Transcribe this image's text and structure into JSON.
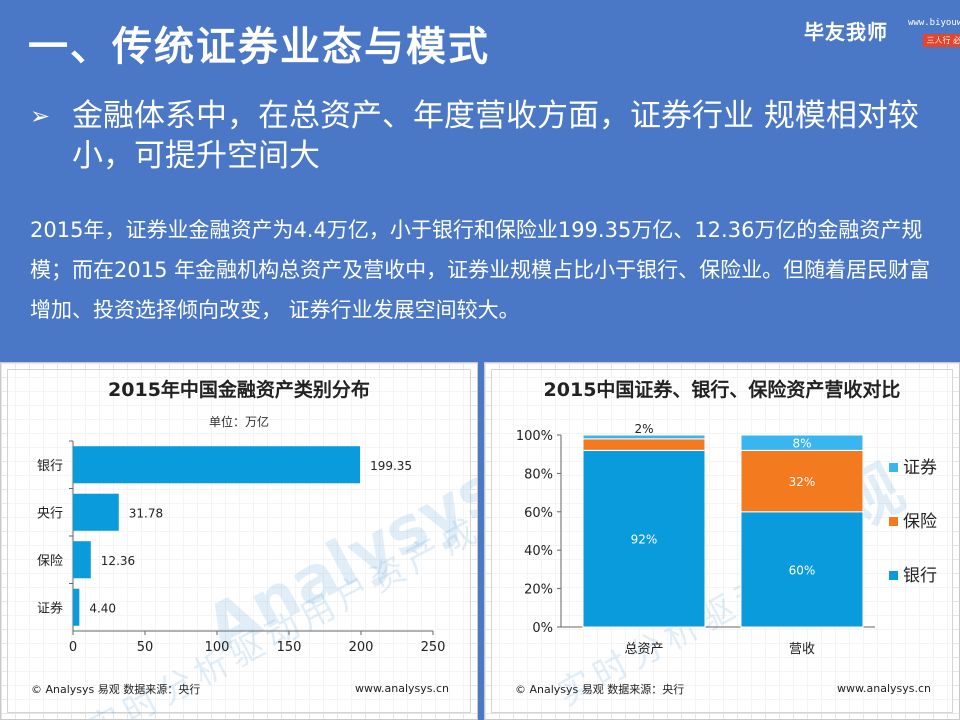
{
  "header": {
    "title": "一、传统证券业态与模式",
    "brand": {
      "name": "毕友我师",
      "url": "www.biyouwoshi.com",
      "tag": "三人行 必有我师"
    }
  },
  "bullet": {
    "mark": "➢",
    "text": "金融体系中，在总资产、年度营收方面，证券行业 规模相对较小，可提升空间大"
  },
  "paragraph": "2015年，证券业金融资产为4.4万亿，小于银行和保险业199.35万亿、12.36万亿的金融资产规模；而在2015 年金融机构总资产及营收中，证券业规模占比小于银行、保险业。但随着居民财富增加、投资选择倾向改变， 证券行业发展空间较大。",
  "left_panel": {
    "unit": "单位：万亿",
    "footer_left": "© Analysys 易观   数据来源：央行",
    "footer_right": "www.analysys.cn",
    "watermark": "Analysys 易观",
    "watermark_sub": "实时分析驱动用户资产成长"
  },
  "right_panel": {
    "footer_left": "© Analysys 易观   数据来源：央行",
    "footer_right": "www.analysys.cn",
    "watermark": "易观",
    "watermark_sub": "实时分析驱动"
  },
  "colors": {
    "background": "#4a78c6",
    "bar_blue": "#0a9bdc",
    "light_blue": "#39b5ef",
    "orange": "#f47a20"
  },
  "chart_data": [
    {
      "type": "bar",
      "orientation": "horizontal",
      "title": "2015年中国金融资产类别分布",
      "ylabel": "单位：万亿",
      "categories": [
        "银行",
        "央行",
        "保险",
        "证券"
      ],
      "values": [
        199.35,
        31.78,
        12.36,
        4.4
      ],
      "value_labels": [
        "199.35",
        "31.78",
        "12.36",
        "4.40"
      ],
      "xlim": [
        0,
        250
      ],
      "xticks": [
        "0",
        "50",
        "100",
        "150",
        "200",
        "250"
      ],
      "grid": false
    },
    {
      "type": "bar",
      "stacked": true,
      "title": "2015中国证券、银行、保险资产营收对比",
      "categories": [
        "总资产",
        "营收"
      ],
      "series": [
        {
          "name": "银行",
          "values": [
            92,
            60
          ],
          "labels": [
            "92%",
            "60%"
          ],
          "color": "#0a9bdc"
        },
        {
          "name": "保险",
          "values": [
            6,
            32
          ],
          "labels": [
            "6%",
            "32%"
          ],
          "color": "#f47a20"
        },
        {
          "name": "证券",
          "values": [
            2,
            8
          ],
          "labels": [
            "2%",
            "8%"
          ],
          "color": "#39b5ef"
        }
      ],
      "legend_order": [
        "证券",
        "保险",
        "银行"
      ],
      "legend_position": "right",
      "ylim": [
        0,
        100
      ],
      "yticks": [
        "0%",
        "20%",
        "40%",
        "60%",
        "80%",
        "100%"
      ]
    }
  ]
}
